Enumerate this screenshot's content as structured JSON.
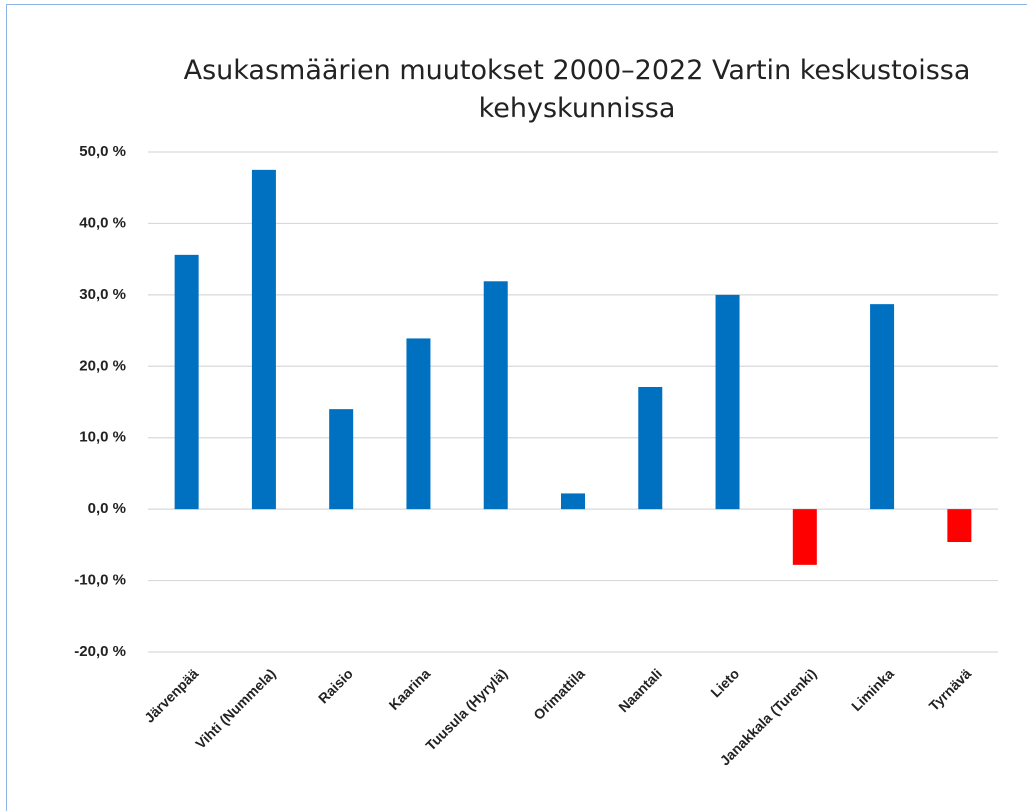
{
  "chart_data": {
    "type": "bar",
    "title": "Asukasmäärien muutokset 2000–2022 Vartin keskustoissa kehyskunnissa",
    "categories": [
      "Järvenpää",
      "Vihti (Nummela)",
      "Raisio",
      "Kaarina",
      "Tuusula (Hyrylä)",
      "Orimattila",
      "Naantali",
      "Lieto",
      "Janakkala (Turenki)",
      "Liminka",
      "Tyrnävä"
    ],
    "values": [
      35.6,
      47.5,
      14.0,
      23.9,
      31.9,
      2.2,
      17.1,
      30.0,
      -7.8,
      28.7,
      -4.6
    ],
    "colors": [
      "#0070c0",
      "#0070c0",
      "#0070c0",
      "#0070c0",
      "#0070c0",
      "#0070c0",
      "#0070c0",
      "#0070c0",
      "#ff0000",
      "#0070c0",
      "#ff0000"
    ],
    "ylim": [
      -20,
      50
    ],
    "yticks": [
      {
        "value": -20,
        "label": "-20,0 %"
      },
      {
        "value": -10,
        "label": "-10,0 %"
      },
      {
        "value": 0,
        "label": "0,0 %"
      },
      {
        "value": 10,
        "label": "10,0 %"
      },
      {
        "value": 20,
        "label": "20,0 %"
      },
      {
        "value": 30,
        "label": "30,0 %"
      },
      {
        "value": 40,
        "label": "40,0 %"
      },
      {
        "value": 50,
        "label": "50,0 %"
      }
    ],
    "grid": true
  }
}
